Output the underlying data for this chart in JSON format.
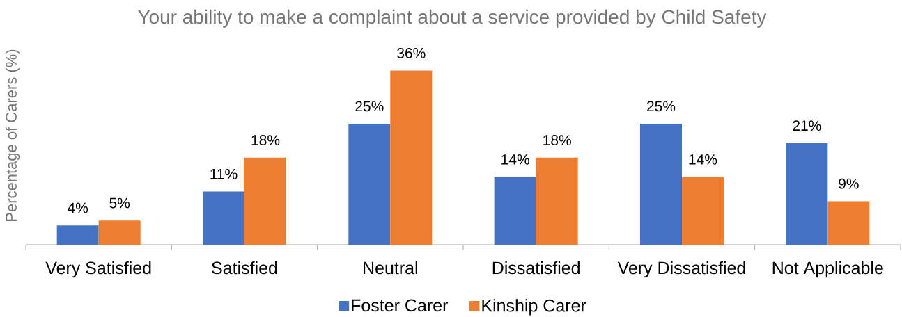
{
  "chart_data": {
    "type": "bar",
    "title": "Your ability to make a complaint about a service provided by Child Safety",
    "ylabel": "Percentage of Carers (%)",
    "categories": [
      "Very Satisfied",
      "Satisfied",
      "Neutral",
      "Dissatisfied",
      "Very Dissatisfied",
      "Not Applicable"
    ],
    "series": [
      {
        "name": "Foster Carer",
        "color": "#4472c4",
        "values": [
          4,
          11,
          25,
          14,
          25,
          21
        ],
        "value_labels": [
          "4%",
          "11%",
          "25%",
          "14%",
          "25%",
          "21%"
        ]
      },
      {
        "name": "Kinship Carer",
        "color": "#ed7d31",
        "values": [
          5,
          18,
          36,
          18,
          14,
          9
        ],
        "value_labels": [
          "5%",
          "18%",
          "36%",
          "18%",
          "14%",
          "9%"
        ]
      }
    ],
    "legend": "bottom"
  }
}
